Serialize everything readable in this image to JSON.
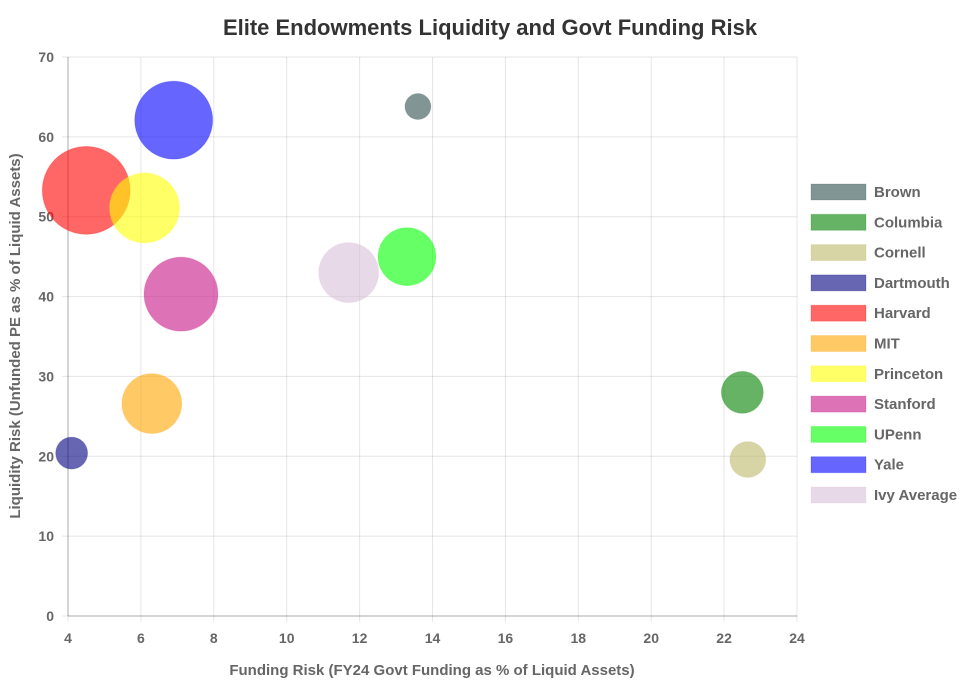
{
  "chart_data": {
    "type": "bubble",
    "title": "Elite Endowments Liquidity and Govt Funding Risk",
    "xlabel": "Funding Risk (FY24 Govt Funding as % of Liquid Assets)",
    "ylabel": "Liquidity Risk (Unfunded PE as % of Liquid Assets)",
    "xlim": [
      4,
      24
    ],
    "ylim": [
      0,
      70
    ],
    "xticks": [
      "4",
      "6",
      "8",
      "10",
      "12",
      "14",
      "16",
      "18",
      "20",
      "22",
      "24"
    ],
    "yticks": [
      "0",
      "10",
      "20",
      "30",
      "40",
      "50",
      "60",
      "70"
    ],
    "grid": true,
    "legend": "right",
    "series": [
      {
        "name": "Brown",
        "x": 13.6,
        "y": 63.8,
        "r": 13,
        "color": "#2f4f4f"
      },
      {
        "name": "Columbia",
        "x": 22.5,
        "y": 28.0,
        "r": 21,
        "color": "#008000"
      },
      {
        "name": "Cornell",
        "x": 22.65,
        "y": 19.6,
        "r": 18,
        "color": "#bdb76b"
      },
      {
        "name": "Dartmouth",
        "x": 4.1,
        "y": 20.4,
        "r": 16,
        "color": "#000080"
      },
      {
        "name": "Harvard",
        "x": 4.5,
        "y": 53.3,
        "r": 44,
        "color": "#ff0000"
      },
      {
        "name": "MIT",
        "x": 6.3,
        "y": 26.6,
        "r": 30,
        "color": "#ffa500"
      },
      {
        "name": "Princeton",
        "x": 6.1,
        "y": 51.1,
        "r": 35,
        "color": "#ffff00"
      },
      {
        "name": "Stanford",
        "x": 7.1,
        "y": 40.3,
        "r": 37,
        "color": "#c71585"
      },
      {
        "name": "UPenn",
        "x": 13.3,
        "y": 45.0,
        "r": 29,
        "color": "#00ff00"
      },
      {
        "name": "Yale",
        "x": 6.9,
        "y": 62.1,
        "r": 39,
        "color": "#0000ff"
      },
      {
        "name": "Ivy Average",
        "x": 11.7,
        "y": 43.0,
        "r": 30,
        "color": "#d8bfd8"
      }
    ]
  }
}
